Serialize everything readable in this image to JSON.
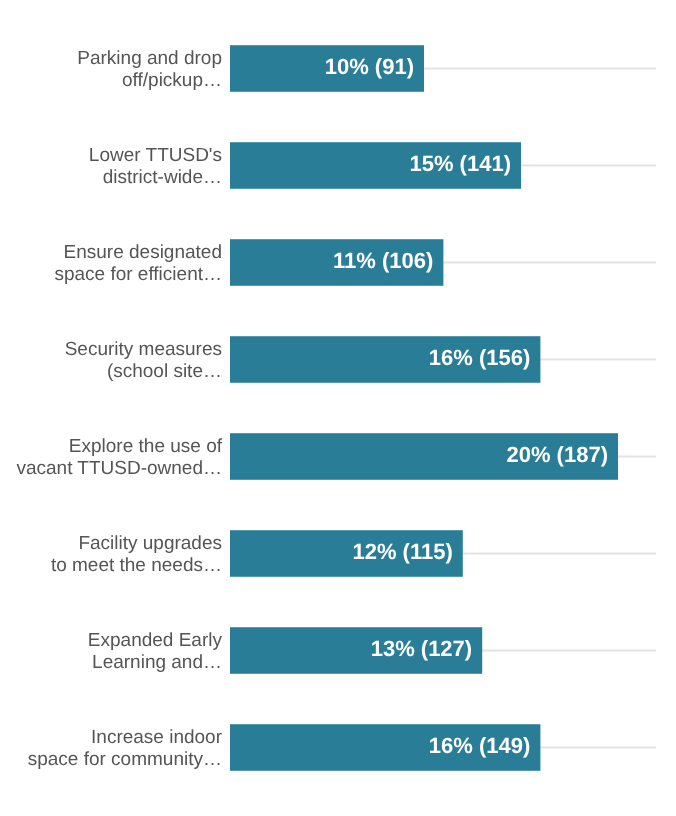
{
  "chart_data": {
    "type": "bar",
    "orientation": "horizontal",
    "categories": [
      "Parking and drop\noff/pickup…",
      "Lower TTUSD's\ndistrict-wide…",
      "Ensure designated\nspace for efficient…",
      "Security measures\n(school site…",
      "Explore the use of\nvacant TTUSD-owned…",
      "Facility upgrades\nto meet the needs…",
      "Expanded Early\nLearning and…",
      "Increase indoor\nspace for community…"
    ],
    "values": [
      10,
      15,
      11,
      16,
      20,
      12,
      13,
      16
    ],
    "value_labels": [
      "10% (91)",
      "15% (141)",
      "11% (106)",
      "16% (156)",
      "20% (187)",
      "12% (115)",
      "13% (127)",
      "16% (149)"
    ],
    "color": "#2a7d97",
    "grid": "y"
  }
}
